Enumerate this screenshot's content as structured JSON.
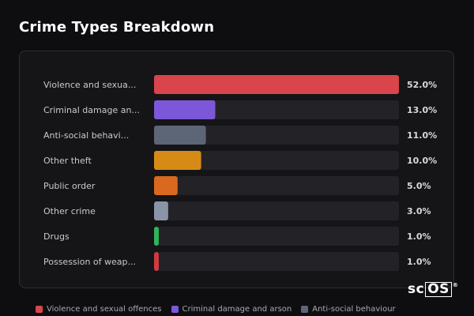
{
  "title": "Crime Types Breakdown",
  "chart_data": {
    "type": "bar",
    "orientation": "horizontal",
    "categories": [
      "Violence and sexua...",
      "Criminal damage an...",
      "Anti-social behavi...",
      "Other theft",
      "Public order",
      "Other crime",
      "Drugs",
      "Possession of weap..."
    ],
    "values": [
      52.0,
      13.0,
      11.0,
      10.0,
      5.0,
      3.0,
      1.0,
      1.0
    ],
    "value_labels": [
      "52.0%",
      "13.0%",
      "11.0%",
      "10.0%",
      "5.0%",
      "3.0%",
      "1.0%",
      "1.0%"
    ],
    "colors": [
      "#d9454a",
      "#7c57d9",
      "#5d6677",
      "#d68b16",
      "#d8691e",
      "#8a94a6",
      "#2fb45a",
      "#cf3b3f"
    ],
    "xlim": [
      0,
      52
    ],
    "grid": false
  },
  "legend": [
    {
      "label": "Violence and sexual offences",
      "color": "#d9454a"
    },
    {
      "label": "Criminal damage and arson",
      "color": "#7c57d9"
    },
    {
      "label": "Anti-social behaviour",
      "color": "#5d6677"
    }
  ],
  "logo": {
    "text_plain": "sc",
    "text_boxed": "OS",
    "mark": "®"
  }
}
